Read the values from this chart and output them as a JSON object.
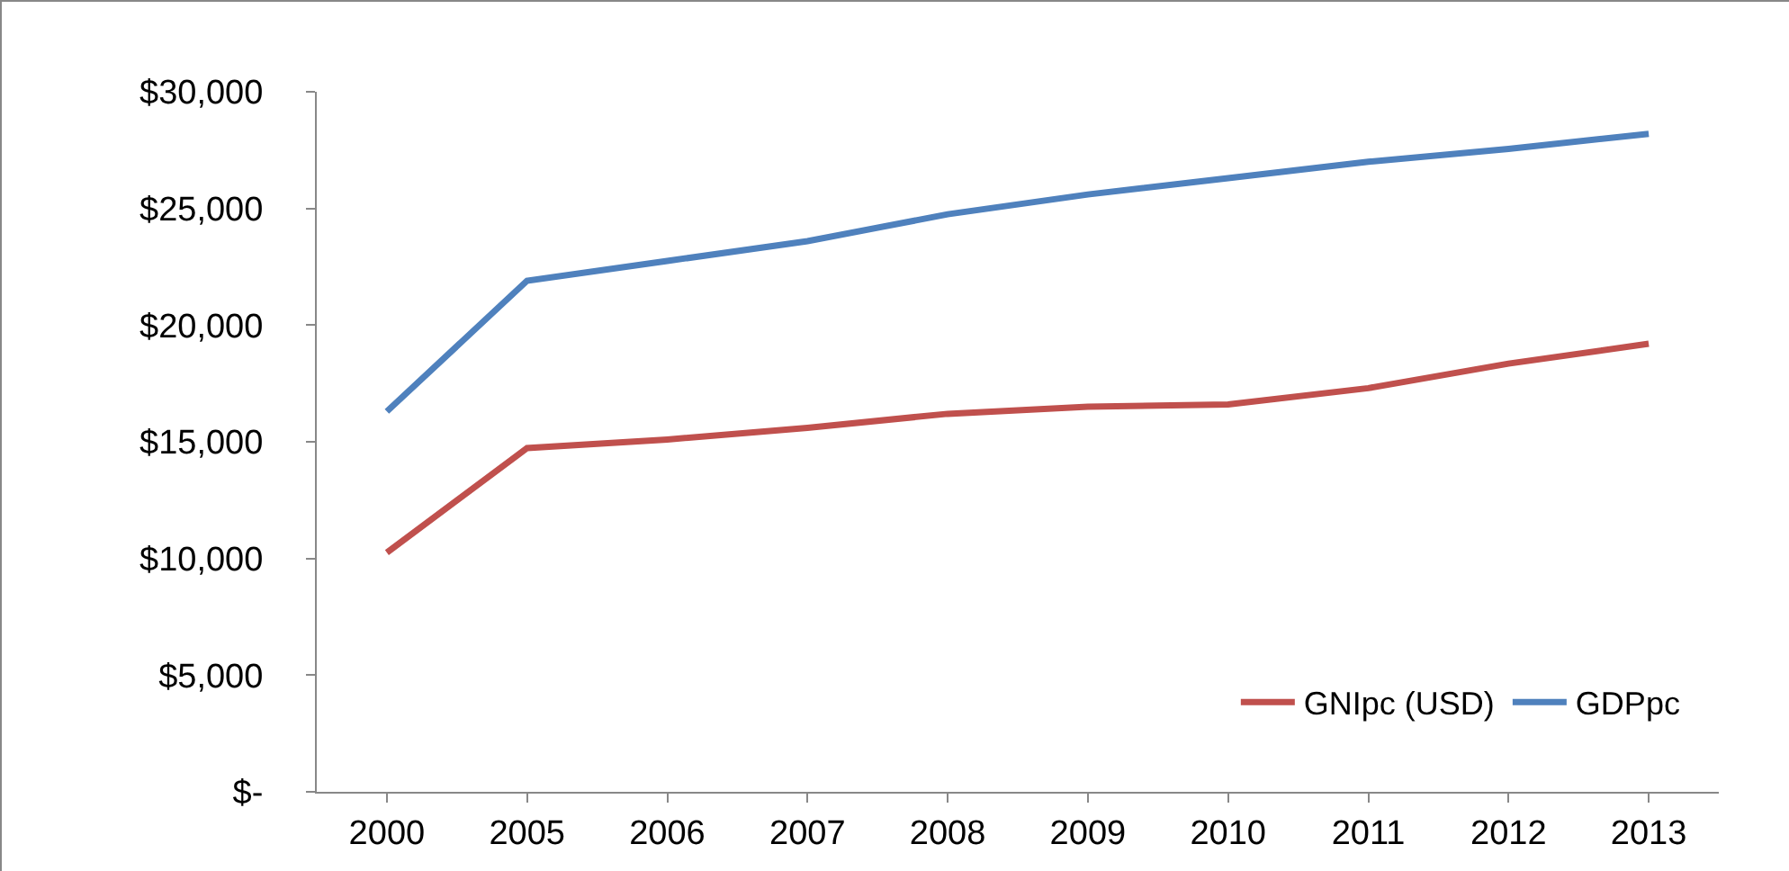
{
  "chart_data": {
    "type": "line",
    "categories": [
      "2000",
      "2005",
      "2006",
      "2007",
      "2008",
      "2009",
      "2010",
      "2011",
      "2012",
      "2013"
    ],
    "series": [
      {
        "name": "GNIpc (USD)",
        "color": "#c0504d",
        "values": [
          10250,
          14730,
          15100,
          15600,
          16200,
          16500,
          16600,
          17300,
          18350,
          19200
        ]
      },
      {
        "name": "GDPpc",
        "color": "#4f81bd",
        "values": [
          16300,
          21900,
          22750,
          23600,
          24750,
          25600,
          26300,
          27000,
          27550,
          28200
        ]
      }
    ],
    "ylim": [
      0,
      30000
    ],
    "yticks": [
      {
        "value": 0,
        "label": "$-"
      },
      {
        "value": 5000,
        "label": "$5,000"
      },
      {
        "value": 10000,
        "label": "$10,000"
      },
      {
        "value": 15000,
        "label": "$15,000"
      },
      {
        "value": 20000,
        "label": "$20,000"
      },
      {
        "value": 25000,
        "label": "$25,000"
      },
      {
        "value": 30000,
        "label": "$30,000"
      }
    ],
    "grid": false,
    "legend": "bottom right",
    "marker": "none",
    "line_style": "solid"
  }
}
